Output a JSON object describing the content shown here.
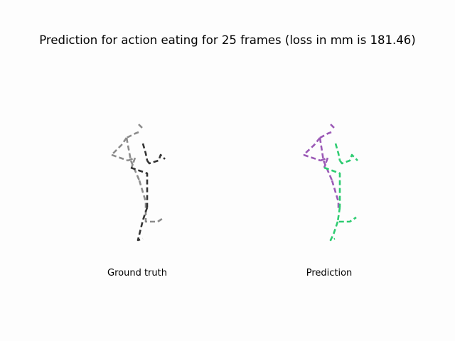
{
  "figure": {
    "title": "Prediction for action eating for 25 frames (loss in mm is 181.46)"
  },
  "panels": [
    {
      "id": "ground_truth",
      "caption": "Ground truth",
      "colors": {
        "left": "#8c8c8c",
        "right": "#333333"
      }
    },
    {
      "id": "prediction",
      "caption": "Prediction",
      "colors": {
        "left": "#9b59b6",
        "right": "#2ecc71"
      }
    }
  ]
}
